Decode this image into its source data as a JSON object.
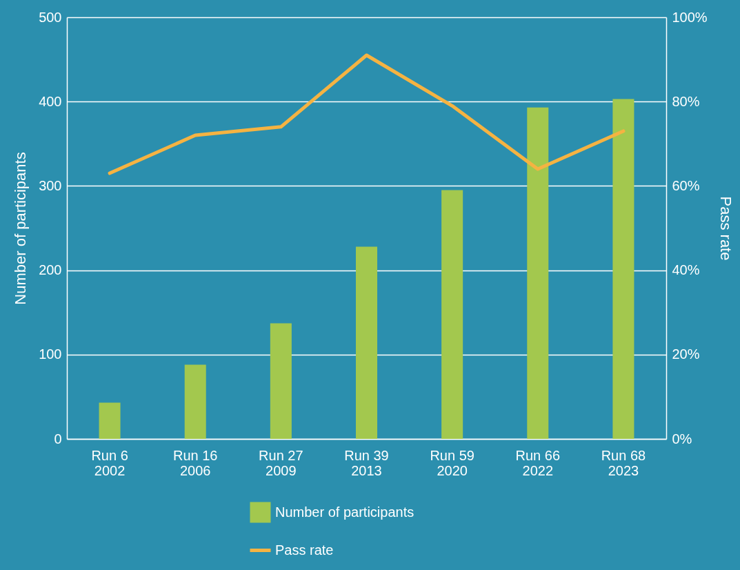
{
  "chart_data": {
    "type": "bar",
    "categories": [
      "Run 6\n2002",
      "Run 16\n2006",
      "Run 27\n2009",
      "Run 39\n2013",
      "Run 59\n2020",
      "Run 66\n2022",
      "Run 68\n2023"
    ],
    "series": [
      {
        "name": "Number of participants",
        "color": "#a3c84e",
        "values": [
          43,
          88,
          137,
          228,
          295,
          393,
          403
        ]
      },
      {
        "name": "Pass rate",
        "type": "line",
        "axis": "y2",
        "color": "#f5b342",
        "values": [
          63,
          72,
          74,
          91,
          79,
          64,
          73
        ]
      }
    ],
    "ylabel": "Number of participants",
    "y2label": "Pass rate",
    "ylim": [
      0,
      500
    ],
    "yticks": [
      0,
      100,
      200,
      300,
      400,
      500
    ],
    "y2lim": [
      0,
      100
    ],
    "y2ticks": [
      {
        "value": 0,
        "label": "0%"
      },
      {
        "value": 20,
        "label": "20%"
      },
      {
        "value": 40,
        "label": "40%"
      },
      {
        "value": 60,
        "label": "60%"
      },
      {
        "value": 80,
        "label": "80%"
      },
      {
        "value": 100,
        "label": "100%"
      }
    ],
    "grid": "y",
    "legend": "bottom",
    "line_style": "solid",
    "marker": "none"
  }
}
